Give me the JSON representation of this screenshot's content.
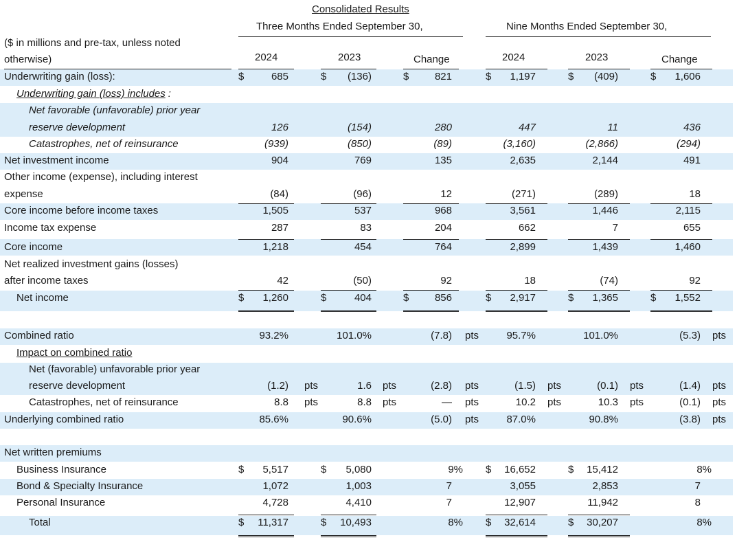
{
  "header": {
    "title": "Consolidated Results",
    "period_three": "Three Months Ended September 30,",
    "period_nine": "Nine Months Ended September 30,",
    "note_line1": "($ in millions and pre-tax, unless noted",
    "note_line2": "otherwise)",
    "col_2024": "2024",
    "col_2023": "2023",
    "col_change": "Change"
  },
  "symbols": {
    "dollar": "$",
    "pts": "pts"
  },
  "rows": [
    {
      "label": "Underwriting gain (loss):",
      "style": "bold",
      "vals": [
        "685",
        "(136)",
        "821",
        "1,197",
        "(409)",
        "1,606"
      ],
      "dollars": true
    },
    {
      "label": "Underwriting gain (loss) includes",
      "suffix": ":",
      "style": "sub-italic-underline"
    },
    {
      "label": "Net favorable (unfavorable) prior year",
      "style": "sub2-italic"
    },
    {
      "label": "reserve development",
      "style": "sub2-italic",
      "vals": [
        "126",
        "(154)",
        "280",
        "447",
        "11",
        "436"
      ]
    },
    {
      "label": "Catastrophes, net of reinsurance",
      "style": "sub2-italic",
      "vals": [
        "(939)",
        "(850)",
        "(89)",
        "(3,160)",
        "(2,866)",
        "(294)"
      ]
    },
    {
      "label": "Net investment income",
      "style": "bold",
      "vals": [
        "904",
        "769",
        "135",
        "2,635",
        "2,144",
        "491"
      ]
    },
    {
      "label": "Other income (expense), including interest",
      "style": "bold"
    },
    {
      "label": "expense",
      "style": "bold",
      "vals": [
        "(84)",
        "(96)",
        "12",
        "(271)",
        "(289)",
        "18"
      ]
    },
    {
      "label": "Core income before income taxes",
      "style": "bold",
      "vals": [
        "1,505",
        "537",
        "968",
        "3,561",
        "1,446",
        "2,115"
      ]
    },
    {
      "label": "Income tax expense",
      "style": "bold",
      "vals": [
        "287",
        "83",
        "204",
        "662",
        "7",
        "655"
      ]
    },
    {
      "label": "Core income",
      "style": "bold",
      "vals": [
        "1,218",
        "454",
        "764",
        "2,899",
        "1,439",
        "1,460"
      ]
    },
    {
      "label": "Net realized investment gains (losses)",
      "style": "bold"
    },
    {
      "label": "after income taxes",
      "style": "bold",
      "vals": [
        "42",
        "(50)",
        "92",
        "18",
        "(74)",
        "92"
      ]
    },
    {
      "label": "Net income",
      "style": "bold-indent",
      "vals": [
        "1,260",
        "404",
        "856",
        "2,917",
        "1,365",
        "1,552"
      ],
      "dollars": true
    }
  ],
  "ratio_rows": [
    {
      "label": "Combined ratio",
      "style": "bold",
      "vals": [
        "93.2%",
        "101.0%",
        "(7.8)",
        "95.7%",
        "101.0%",
        "(5.3)"
      ],
      "pts": [
        false,
        false,
        true,
        false,
        false,
        true
      ]
    },
    {
      "label": "Impact on combined ratio",
      "style": "sub-underline"
    },
    {
      "label": "Net (favorable) unfavorable prior year",
      "style": "sub2"
    },
    {
      "label": "reserve development",
      "style": "sub2",
      "vals": [
        "(1.2)",
        "1.6",
        "(2.8)",
        "(1.5)",
        "(0.1)",
        "(1.4)"
      ],
      "pts": [
        true,
        true,
        true,
        true,
        true,
        true
      ]
    },
    {
      "label": "Catastrophes, net of reinsurance",
      "style": "sub2",
      "vals": [
        "8.8",
        "8.8",
        "—",
        "10.2",
        "10.3",
        "(0.1)"
      ],
      "pts": [
        true,
        true,
        true,
        true,
        true,
        true
      ]
    },
    {
      "label": "Underlying combined ratio",
      "style": "bold",
      "vals": [
        "85.6%",
        "90.6%",
        "(5.0)",
        "87.0%",
        "90.8%",
        "(3.8)"
      ],
      "pts": [
        false,
        false,
        true,
        false,
        false,
        true
      ]
    }
  ],
  "premium_rows": [
    {
      "label": "Net written premiums",
      "style": "bold"
    },
    {
      "label": "Business Insurance",
      "style": "sub",
      "vals": [
        "5,517",
        "5,080",
        "9%",
        "16,652",
        "15,412",
        "8%"
      ],
      "dollars": true
    },
    {
      "label": "Bond & Specialty Insurance",
      "style": "sub",
      "vals": [
        "1,072",
        "1,003",
        "7",
        "3,055",
        "2,853",
        "7"
      ]
    },
    {
      "label": "Personal Insurance",
      "style": "sub",
      "vals": [
        "4,728",
        "4,410",
        "7",
        "12,907",
        "11,942",
        "8"
      ]
    },
    {
      "label": "Total",
      "style": "sub2",
      "vals": [
        "11,317",
        "10,493",
        "8%",
        "32,614",
        "30,207",
        "8%"
      ],
      "dollars": true
    }
  ],
  "colors": {
    "shade": "#dcedf9",
    "rule": "#222222"
  }
}
